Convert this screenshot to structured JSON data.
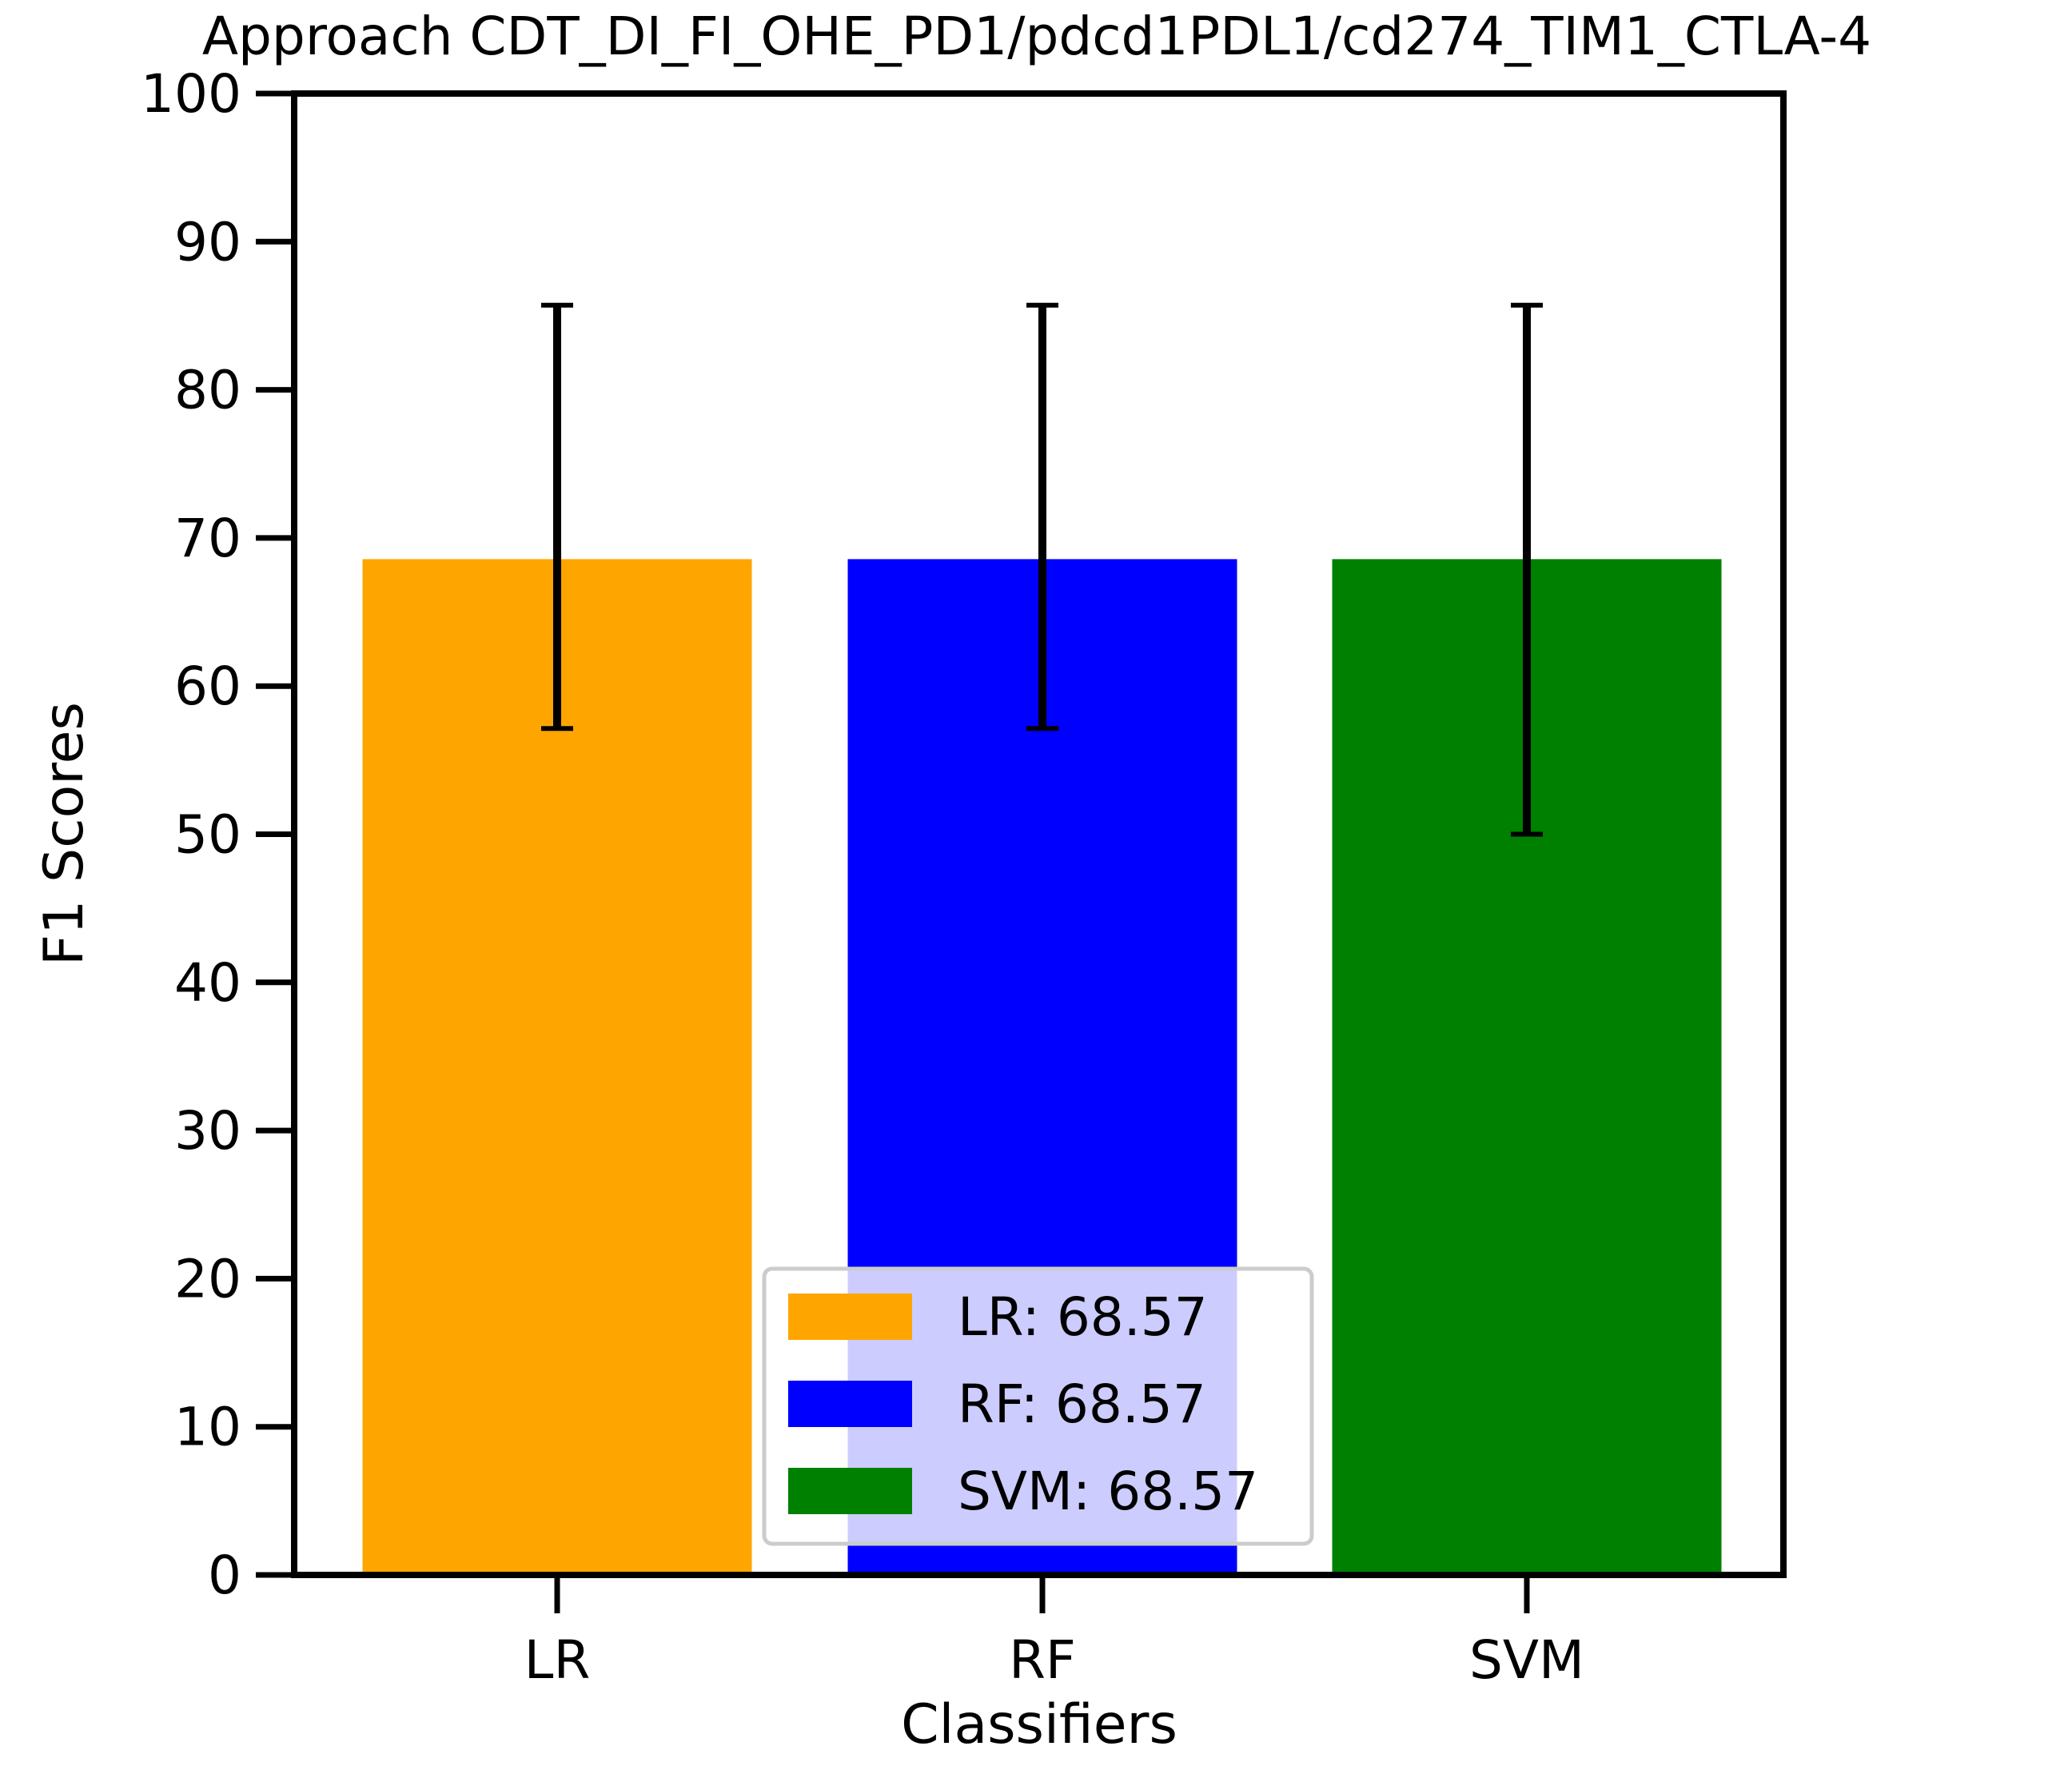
{
  "chart_data": {
    "type": "bar",
    "title": "Approach CDT_DI_FI_OHE_PD1/pdcd1PDL1/cd274_TIM1_CTLA-4",
    "xlabel": "Classifiers",
    "ylabel": "F1 Scores",
    "ylim": [
      0,
      100
    ],
    "yticks": [
      "0",
      "10",
      "20",
      "30",
      "40",
      "50",
      "60",
      "70",
      "80",
      "90",
      "100"
    ],
    "categories": [
      "LR",
      "RF",
      "SVM"
    ],
    "values": [
      68.57,
      68.57,
      68.57
    ],
    "error_low": [
      57.14,
      57.14,
      50.0
    ],
    "error_high": [
      85.71,
      85.71,
      85.71
    ],
    "colors": [
      "#FFA500",
      "#0000FF",
      "#008000"
    ],
    "grid": false,
    "legend": {
      "placement": "lower-center",
      "entries": [
        "LR: 68.57",
        "RF: 68.57",
        "SVM: 68.57"
      ]
    }
  }
}
